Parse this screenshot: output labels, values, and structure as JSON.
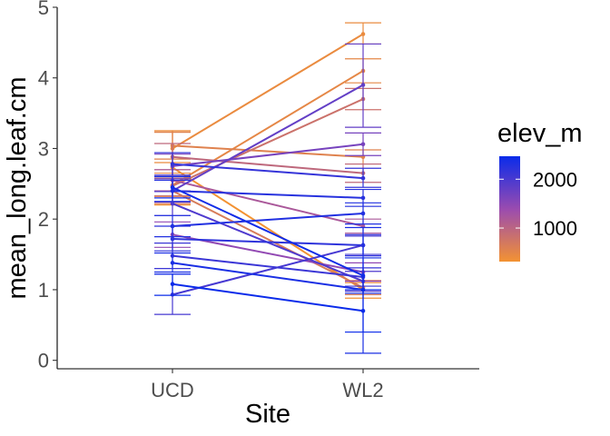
{
  "chart_data": {
    "type": "line",
    "title": "",
    "xlabel": "Site",
    "ylabel": "mean_long.leaf.cm",
    "categories": [
      "UCD",
      "WL2"
    ],
    "ylim": [
      -0.12,
      5.0
    ],
    "yticks": [
      0,
      1,
      2,
      3,
      4,
      5
    ],
    "grid": false,
    "legend": {
      "title": "elev_m",
      "position": "right",
      "ticks": [
        1000,
        2000
      ],
      "range": [
        313,
        2470
      ],
      "color_low": "#F39232",
      "color_mid": "#9A4BB0",
      "color_high": "#0A2BEA"
    },
    "series": [
      {
        "elev": 313,
        "values": [
          2.73,
          1.0
        ],
        "err": [
          [
            2.2,
            3.25
          ],
          [
            0.88,
            1.1
          ]
        ]
      },
      {
        "elev": 420,
        "values": [
          3.0,
          4.62
        ],
        "err": [
          [
            2.8,
            3.25
          ],
          [
            4.48,
            4.78
          ]
        ]
      },
      {
        "elev": 480,
        "values": [
          2.48,
          4.1
        ],
        "err": [
          [
            2.32,
            2.65
          ],
          [
            3.93,
            4.27
          ]
        ]
      },
      {
        "elev": 550,
        "values": [
          3.04,
          2.88
        ],
        "err": [
          [
            2.85,
            3.23
          ],
          [
            2.78,
            2.98
          ]
        ]
      },
      {
        "elev": 650,
        "values": [
          2.4,
          1.03
        ],
        "err": [
          [
            2.22,
            2.58
          ],
          [
            0.93,
            1.13
          ]
        ]
      },
      {
        "elev": 800,
        "values": [
          2.47,
          3.7
        ],
        "err": [
          [
            2.33,
            2.62
          ],
          [
            3.55,
            3.85
          ]
        ]
      },
      {
        "elev": 950,
        "values": [
          2.88,
          2.65
        ],
        "err": [
          [
            2.7,
            3.07
          ],
          [
            2.52,
            2.78
          ]
        ]
      },
      {
        "elev": 1200,
        "values": [
          2.55,
          1.9
        ],
        "err": [
          [
            2.4,
            2.7
          ],
          [
            1.8,
            2.0
          ]
        ]
      },
      {
        "elev": 1450,
        "values": [
          1.78,
          1.25
        ],
        "err": [
          [
            1.6,
            1.96
          ],
          [
            1.12,
            1.38
          ]
        ]
      },
      {
        "elev": 1650,
        "values": [
          2.75,
          3.06
        ],
        "err": [
          [
            2.62,
            2.92
          ],
          [
            2.9,
            3.22
          ]
        ]
      },
      {
        "elev": 1800,
        "values": [
          2.4,
          3.9
        ],
        "err": [
          [
            2.24,
            2.57
          ],
          [
            3.3,
            4.48
          ]
        ]
      },
      {
        "elev": 1950,
        "values": [
          2.22,
          1.12
        ],
        "err": [
          [
            2.05,
            2.39
          ],
          [
            0.98,
            1.26
          ]
        ]
      },
      {
        "elev": 2020,
        "values": [
          0.93,
          1.63
        ],
        "err": [
          [
            0.65,
            1.22
          ],
          [
            1.5,
            1.76
          ]
        ]
      },
      {
        "elev": 2100,
        "values": [
          1.48,
          1.18
        ],
        "err": [
          [
            1.3,
            1.66
          ],
          [
            1.05,
            1.31
          ]
        ]
      },
      {
        "elev": 2150,
        "values": [
          2.78,
          2.58
        ],
        "err": [
          [
            2.62,
            2.94
          ],
          [
            2.45,
            2.72
          ]
        ]
      },
      {
        "elev": 2200,
        "values": [
          1.72,
          1.63
        ],
        "err": [
          [
            1.55,
            1.9
          ],
          [
            1.48,
            1.78
          ]
        ]
      },
      {
        "elev": 2250,
        "values": [
          2.4,
          2.3
        ],
        "err": [
          [
            2.25,
            2.55
          ],
          [
            2.18,
            2.42
          ]
        ]
      },
      {
        "elev": 2300,
        "values": [
          1.9,
          2.08
        ],
        "err": [
          [
            1.75,
            2.05
          ],
          [
            1.93,
            2.23
          ]
        ]
      },
      {
        "elev": 2350,
        "values": [
          1.38,
          1.0
        ],
        "err": [
          [
            1.25,
            1.52
          ],
          [
            0.1,
            1.88
          ]
        ]
      },
      {
        "elev": 2420,
        "values": [
          2.45,
          1.2
        ],
        "err": [
          [
            2.3,
            2.6
          ],
          [
            0.95,
            1.45
          ]
        ]
      },
      {
        "elev": 2470,
        "values": [
          1.08,
          0.7
        ],
        "err": [
          [
            0.92,
            1.22
          ],
          [
            0.4,
            1.0
          ]
        ]
      }
    ]
  }
}
